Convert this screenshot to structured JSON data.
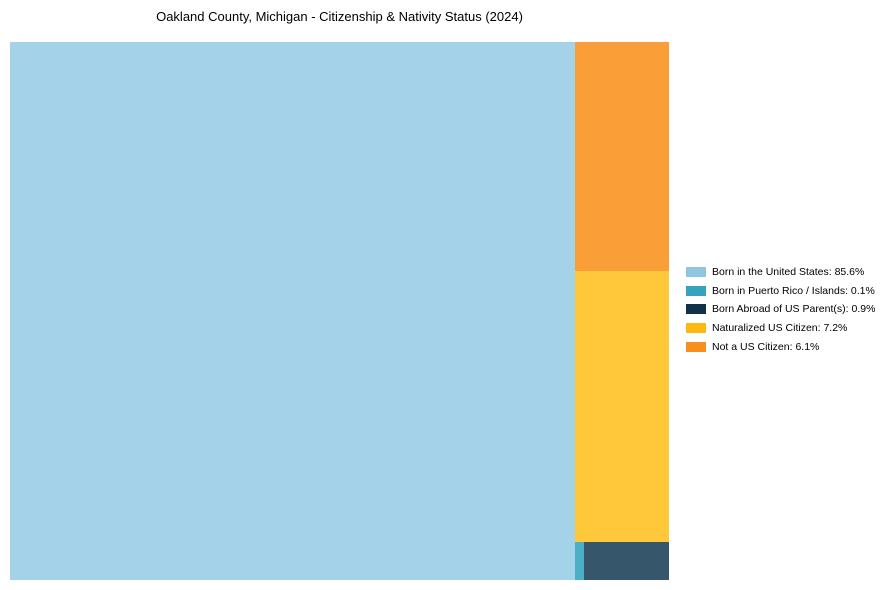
{
  "page": {
    "background_color": "#ffffff"
  },
  "title": "Oakland County, Michigan - Citizenship & Nativity Status (2024)",
  "chart_data": {
    "type": "treemap",
    "title": "Oakland County, Michigan - Citizenship & Nativity Status (2024)",
    "unit": "%",
    "legend_position": "right",
    "layout_hint": "single large rect on left (85.6%), remaining categories stacked in right column: orange top, yellow middle, thin bottom row split teal|navy",
    "categories": [
      {
        "label": "Born in the United States",
        "value": 85.6,
        "legend_label": "Born in the United States: 85.6%",
        "chart_color": "#A4D3E9",
        "legend_color": "#8FC6E0"
      },
      {
        "label": "Born in Puerto Rico / Islands",
        "value": 0.1,
        "legend_label": "Born in Puerto Rico / Islands: 0.1%",
        "chart_color": "#4BAFC5",
        "legend_color": "#36A3BE"
      },
      {
        "label": "Born Abroad of US Parent(s)",
        "value": 0.9,
        "legend_label": "Born Abroad of US Parent(s): 0.9%",
        "chart_color": "#35566B",
        "legend_color": "#103149"
      },
      {
        "label": "Naturalized US Citizen",
        "value": 7.2,
        "legend_label": "Naturalized US Citizen: 7.2%",
        "chart_color": "#FFC83A",
        "legend_color": "#FDB911"
      },
      {
        "label": "Not a US Citizen",
        "value": 6.1,
        "legend_label": "Not a US Citizen: 6.1%",
        "chart_color": "#FA9E38",
        "legend_color": "#F78E1D"
      }
    ]
  }
}
